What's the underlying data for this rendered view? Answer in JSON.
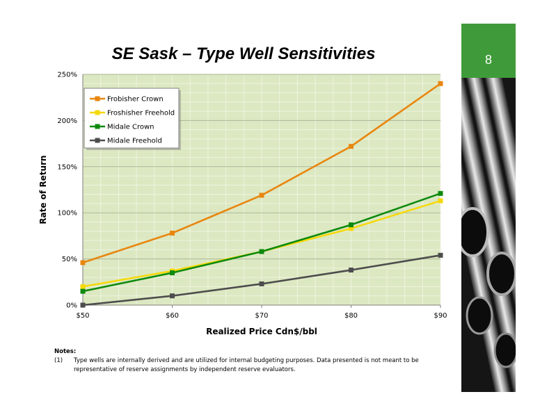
{
  "slide": {
    "title": "SE Sask – Type Well Sensitivities",
    "page_number": "8"
  },
  "colors": {
    "plot_background": "#dce8c1",
    "accent_green": "#3f9b3a"
  },
  "chart_data": {
    "type": "line",
    "title": "",
    "xlabel": "Realized Price Cdn$/bbl",
    "ylabel": "Rate of Return",
    "categories": [
      "$50",
      "$60",
      "$70",
      "$80",
      "$90"
    ],
    "ylim": [
      0,
      250
    ],
    "yticks": [
      "0%",
      "50%",
      "100%",
      "150%",
      "200%",
      "250%"
    ],
    "grid": true,
    "legend_position": "top-left",
    "series": [
      {
        "name": "Frobisher Crown",
        "color": "#e8860f",
        "values": [
          46,
          78,
          119,
          172,
          240
        ]
      },
      {
        "name": "Froshisher Freehold",
        "color": "#f5d90a",
        "values": [
          20,
          37,
          58,
          83,
          113
        ]
      },
      {
        "name": "Midale Crown",
        "color": "#0d8a0d",
        "values": [
          15,
          35,
          58,
          87,
          121
        ]
      },
      {
        "name": "Midale Freehold",
        "color": "#4d4d4d",
        "values": [
          0,
          10,
          23,
          38,
          54
        ]
      }
    ]
  },
  "notes": {
    "heading": "Notes:",
    "items": [
      {
        "num": "(1)",
        "line1": "Type wells are internally derived and are utilized for internal budgeting purposes.  Data presented is not meant to be",
        "line2": "representative of reserve assignments by independent reserve evaluators."
      }
    ]
  }
}
